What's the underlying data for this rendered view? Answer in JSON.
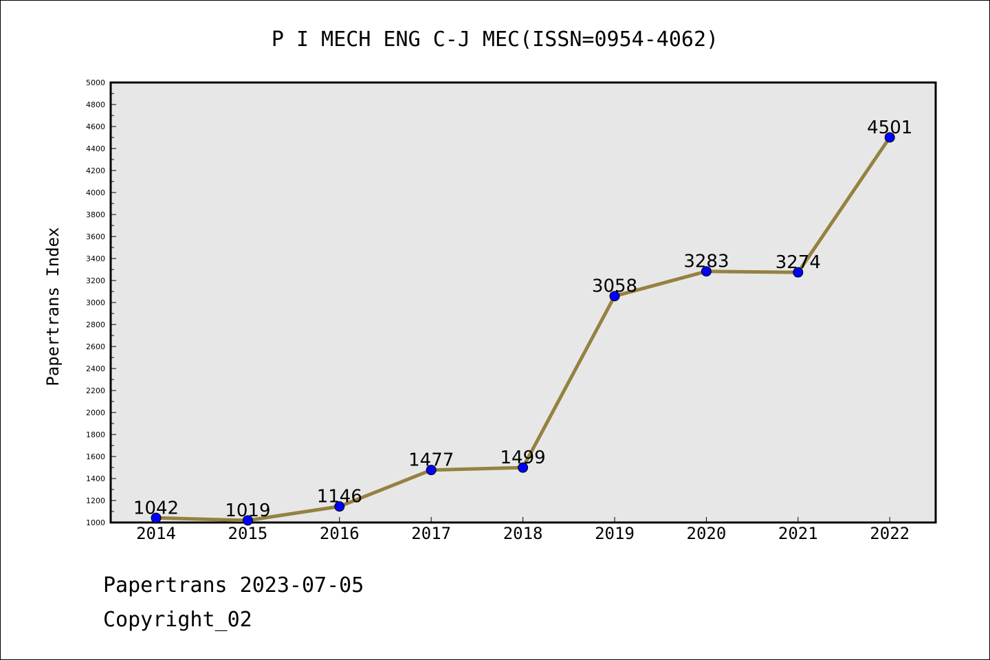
{
  "chart_data": {
    "type": "line",
    "title": "P I MECH ENG C-J MEC(ISSN=0954-4062)",
    "ylabel": "Papertrans Index",
    "xlabel": "",
    "categories": [
      "2014",
      "2015",
      "2016",
      "2017",
      "2018",
      "2019",
      "2020",
      "2021",
      "2022"
    ],
    "values": [
      1042,
      1019,
      1146,
      1477,
      1499,
      3058,
      3283,
      3274,
      4501
    ],
    "data_labels": [
      "1042",
      "1019",
      "1146",
      "1477",
      "1499",
      "3058",
      "3283",
      "3274",
      "4501"
    ],
    "ylim": [
      1000,
      5000
    ],
    "yticks": [
      "1000",
      "1200",
      "1400",
      "1600",
      "1800",
      "2000",
      "2200",
      "2400",
      "2600",
      "2800",
      "3000",
      "3200",
      "3400",
      "3600",
      "3800",
      "4000",
      "4200",
      "4400",
      "4600",
      "4800",
      "5000"
    ],
    "grid": false,
    "colors": {
      "line": "#958141",
      "marker": "#0000ff",
      "plot_background": "#e7e7e7",
      "frame": "#000000"
    }
  },
  "footer": {
    "line1": "Papertrans 2023-07-05",
    "line2": "Copyright_02"
  }
}
